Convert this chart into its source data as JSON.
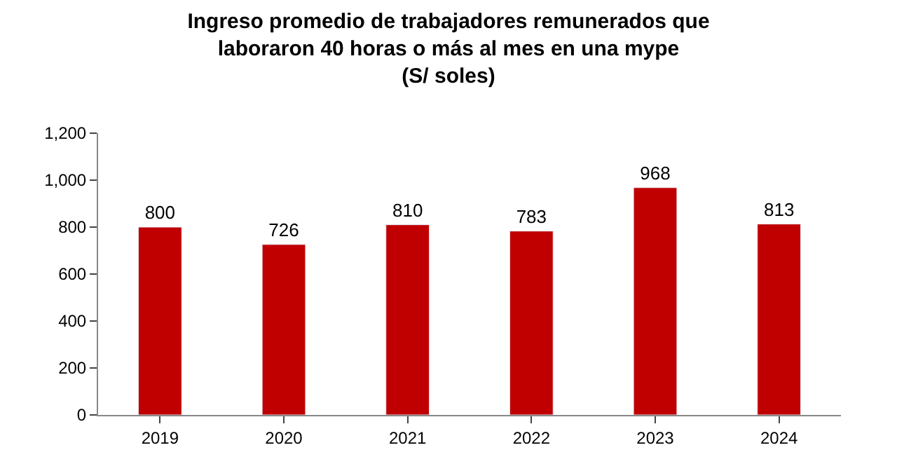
{
  "chart_data": {
    "type": "bar",
    "title": "Ingreso promedio de trabajadores remunerados que\nlaboraron 40 horas o más al mes en una mype\n(S/ soles)",
    "categories": [
      "2019",
      "2020",
      "2021",
      "2022",
      "2023",
      "2024"
    ],
    "values": [
      800,
      726,
      810,
      783,
      968,
      813
    ],
    "color": "#c00000",
    "ylim": [
      0,
      1200
    ],
    "yticks": [
      0,
      200,
      400,
      600,
      800,
      {
        "value": 1000,
        "label": "1,000"
      },
      {
        "value": 1200,
        "label": "1,200"
      }
    ],
    "data_labels": true
  }
}
